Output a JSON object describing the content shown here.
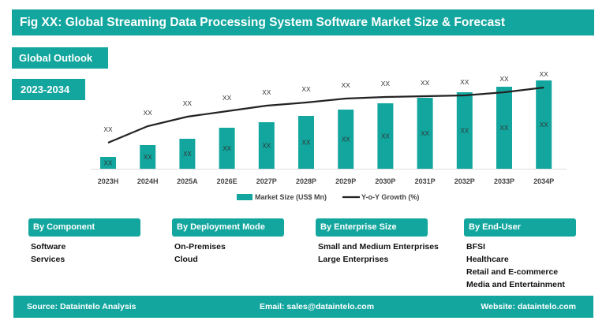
{
  "header": {
    "title": "Fig XX: Global Streaming Data Processing System Software Market Size & Forecast",
    "outlook": "Global Outlook",
    "period": "2023-2034"
  },
  "colors": {
    "accent": "#12a69e",
    "line": "#222222"
  },
  "chart_data": {
    "type": "bar+line",
    "categories": [
      "2023H",
      "2024H",
      "2025A",
      "2026E",
      "2027P",
      "2028P",
      "2029P",
      "2030P",
      "2031P",
      "2032P",
      "2033P",
      "2034P"
    ],
    "series": [
      {
        "name": "Market Size (US$ Mn)",
        "type": "bar",
        "values": [
          15,
          30,
          38,
          52,
          59,
          67,
          75,
          83,
          90,
          97,
          104,
          112
        ],
        "labels": [
          "XX",
          "XX",
          "XX",
          "XX",
          "XX",
          "XX",
          "XX",
          "XX",
          "XX",
          "XX",
          "XX",
          "XX"
        ]
      },
      {
        "name": "Y-o-Y Growth (%)",
        "type": "line",
        "values": [
          33,
          54,
          66,
          73,
          80,
          84,
          89,
          91,
          92,
          93,
          97,
          103
        ],
        "labels": [
          "XX",
          "XX",
          "XX",
          "XX",
          "XX",
          "XX",
          "XX",
          "XX",
          "XX",
          "XX",
          "XX",
          "XX"
        ]
      }
    ],
    "legend": "bottom",
    "grid": false
  },
  "segments": [
    {
      "title": "By Component",
      "items": [
        "Software",
        "Services"
      ]
    },
    {
      "title": "By Deployment Mode",
      "items": [
        "On-Premises",
        "Cloud"
      ]
    },
    {
      "title": "By Enterprise Size",
      "items": [
        "Small and Medium Enterprises",
        "Large Enterprises"
      ]
    },
    {
      "title": "By End-User",
      "items": [
        "BFSI",
        "Healthcare",
        "Retail and E-commerce",
        "Media and Entertainment"
      ]
    }
  ],
  "footer": {
    "source": "Source: Dataintelo   Analysis",
    "email": "Email: sales@dataintelo.com",
    "website": "Website: dataintelo.com"
  }
}
